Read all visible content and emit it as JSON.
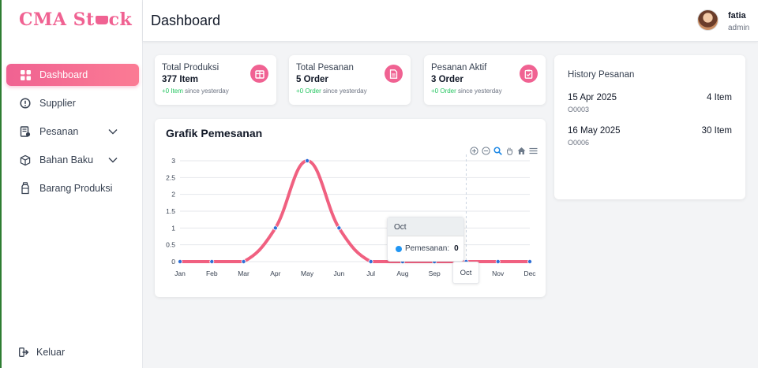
{
  "app": {
    "logo_text_1": "CMA St",
    "logo_text_2": "ck"
  },
  "sidebar": {
    "items": [
      {
        "label": "Dashboard",
        "icon": "grid-icon"
      },
      {
        "label": "Supplier",
        "icon": "alert-circle-icon"
      },
      {
        "label": "Pesanan",
        "icon": "receipt-icon"
      },
      {
        "label": "Bahan Baku",
        "icon": "box-icon"
      },
      {
        "label": "Barang Produksi",
        "icon": "bottle-icon"
      }
    ],
    "logout_label": "Keluar"
  },
  "header": {
    "title": "Dashboard",
    "user_name": "fatia",
    "user_role": "admin"
  },
  "stats": [
    {
      "label": "Total Produksi",
      "value": "377 Item",
      "delta": "+0 Item",
      "since": " since yesterday"
    },
    {
      "label": "Total Pesanan",
      "value": "5 Order",
      "delta": "+0 Order",
      "since": " since yesterday"
    },
    {
      "label": "Pesanan Aktif",
      "value": "3 Order",
      "delta": "+0 Order",
      "since": " since yesterday"
    }
  ],
  "history": {
    "title": "History Pesanan",
    "rows": [
      {
        "date": "15 Apr 2025",
        "code": "O0003",
        "qty": "4 Item"
      },
      {
        "date": "16 May 2025",
        "code": "O0006",
        "qty": "30 Item"
      }
    ]
  },
  "chart_title": "Grafik Pemesanan",
  "tooltip": {
    "header": "Oct",
    "series_label": "Pemesanan:",
    "value": "0",
    "xaxis_label": "Oct"
  },
  "chart_data": {
    "type": "line",
    "title": "Grafik Pemesanan",
    "categories": [
      "Jan",
      "Feb",
      "Mar",
      "Apr",
      "May",
      "Jun",
      "Jul",
      "Aug",
      "Sep",
      "Oct",
      "Nov",
      "Dec"
    ],
    "series": [
      {
        "name": "Pemesanan",
        "values": [
          0,
          0,
          0,
          1,
          3,
          1,
          0,
          0,
          0,
          0,
          0,
          0
        ]
      }
    ],
    "yticks": [
      "0",
      "0.5",
      "1",
      "1.5",
      "2",
      "2.5",
      "3"
    ],
    "ylim": [
      0,
      3
    ],
    "line_color": "#f06080",
    "marker_color": "#2f6fd6",
    "hover_category": "Oct"
  }
}
